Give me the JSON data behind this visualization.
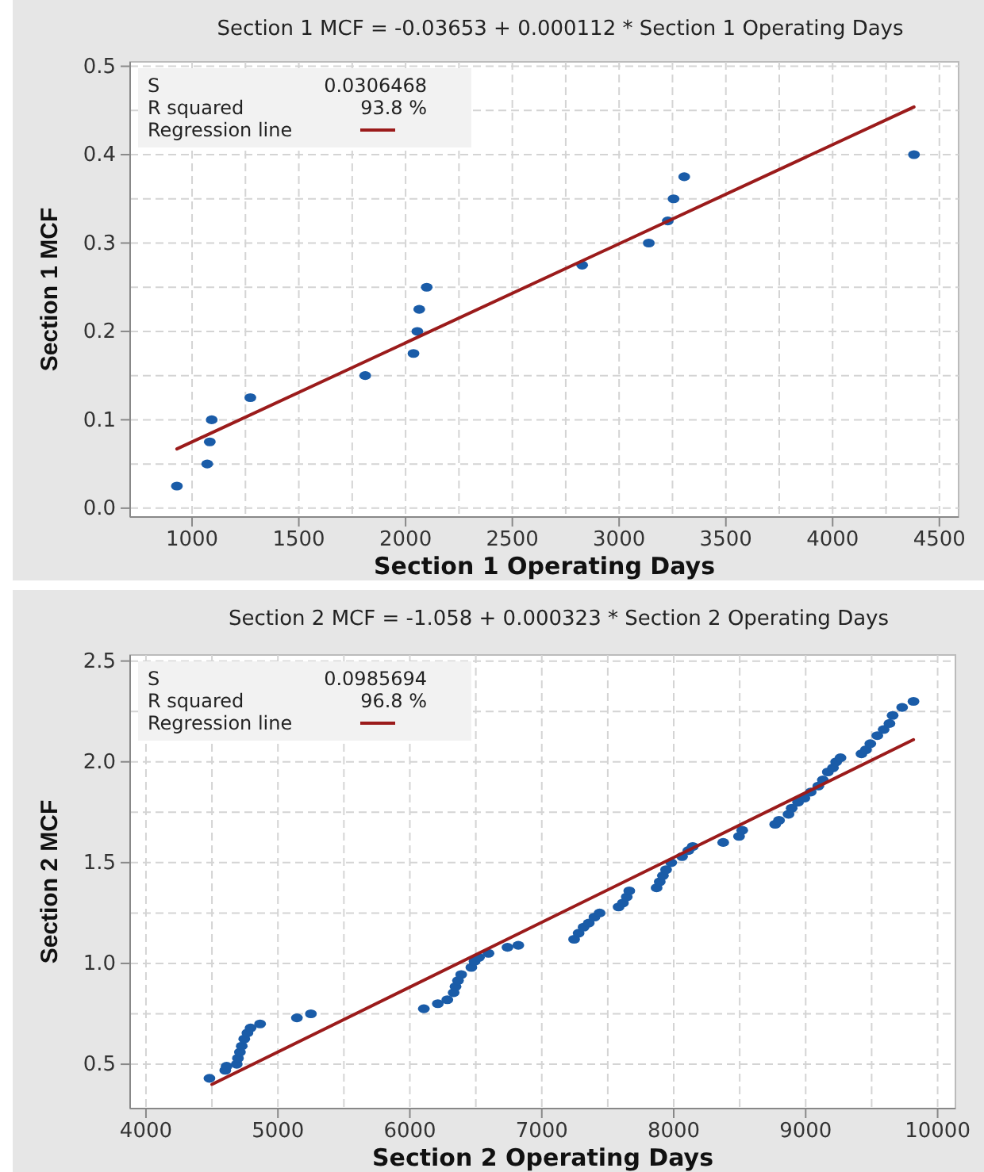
{
  "chart_data": [
    {
      "type": "scatter",
      "title": "Section 1 MCF = -0.03653 + 0.000112 * Section 1 Operating Days",
      "xlabel": "Section 1 Operating Days",
      "ylabel": "Section 1 MCF",
      "xlim": [
        710,
        4590
      ],
      "ylim": [
        -0.01,
        0.505
      ],
      "xticks": [
        1000,
        1500,
        2000,
        2500,
        3000,
        3500,
        4000,
        4500
      ],
      "yticks": [
        {
          "value": 0,
          "label": "0.0"
        },
        0.1,
        0.2,
        0.3,
        0.4,
        0.5
      ],
      "grid": true,
      "legend": "top left",
      "marker": "circle",
      "annotations": [
        "S",
        "0.0306468",
        "R squared",
        "93.8 %"
      ],
      "series": [
        {
          "color": "#1a5ca8",
          "x": [
            929,
            1071,
            1083,
            1092,
            1273,
            1811,
            2037,
            2055,
            2064,
            2099,
            2827,
            3139,
            3228,
            3255,
            3305,
            4381
          ],
          "values": [
            0.025,
            0.05,
            0.075,
            0.1,
            0.125,
            0.15,
            0.175,
            0.2,
            0.225,
            0.25,
            0.275,
            0.3,
            0.325,
            0.35,
            0.375,
            0.4
          ]
        },
        {
          "type": "line",
          "name": "Regression line",
          "color": "#9b1b1b",
          "line_style": "solid",
          "marker": "none",
          "x": [
            929,
            4381
          ],
          "values": [
            0.067,
            0.454
          ]
        }
      ]
    },
    {
      "type": "scatter",
      "title": "Section 2 MCF = -1.058 + 0.000323 * Section 2 Operating Days",
      "xlabel": "Section 2 Operating Days",
      "ylabel": "Section 2 MCF",
      "xlim": [
        3880,
        10135
      ],
      "ylim": [
        0.28,
        2.53
      ],
      "xticks": [
        4000,
        5000,
        6000,
        7000,
        8000,
        9000,
        10000
      ],
      "yticks": [
        0.5,
        {
          "value": 1,
          "label": "1.0"
        },
        1.5,
        {
          "value": 2,
          "label": "2.0"
        },
        2.5
      ],
      "grid": true,
      "legend": "top left",
      "marker": "circle",
      "annotations": [
        "S",
        "0.0985694",
        "R squared",
        "96.8 %"
      ],
      "series": [
        {
          "color": "#1a5ca8",
          "x": [
            4481,
            4601,
            4611,
            4688,
            4697,
            4712,
            4726,
            4745,
            4769,
            4793,
            4865,
            5144,
            5250,
            6106,
            6212,
            6284,
            6332,
            6346,
            6365,
            6389,
            6466,
            6490,
            6524,
            6596,
            6740,
            6822,
            7245,
            7279,
            7317,
            7356,
            7399,
            7438,
            7582,
            7615,
            7644,
            7663,
            7870,
            7894,
            7918,
            7942,
            7981,
            8063,
            8111,
            8144,
            8375,
            8495,
            8519,
            8769,
            8798,
            8870,
            8894,
            8942,
            8990,
            9038,
            9096,
            9130,
            9168,
            9207,
            9231,
            9264,
            9423,
            9457,
            9490,
            9543,
            9591,
            9635,
            9659,
            9731,
            9817
          ],
          "values": [
            0.43,
            0.47,
            0.49,
            0.5,
            0.53,
            0.56,
            0.59,
            0.625,
            0.655,
            0.68,
            0.7,
            0.73,
            0.75,
            0.775,
            0.8,
            0.82,
            0.855,
            0.885,
            0.915,
            0.945,
            0.98,
            1.01,
            1.03,
            1.05,
            1.08,
            1.09,
            1.12,
            1.15,
            1.18,
            1.2,
            1.23,
            1.25,
            1.28,
            1.3,
            1.33,
            1.36,
            1.375,
            1.405,
            1.435,
            1.465,
            1.5,
            1.53,
            1.56,
            1.58,
            1.6,
            1.63,
            1.66,
            1.69,
            1.71,
            1.74,
            1.77,
            1.8,
            1.82,
            1.85,
            1.88,
            1.91,
            1.95,
            1.97,
            2.0,
            2.02,
            2.04,
            2.06,
            2.09,
            2.13,
            2.16,
            2.19,
            2.23,
            2.27,
            2.3
          ]
        },
        {
          "type": "line",
          "name": "Regression line",
          "color": "#9b1b1b",
          "line_style": "solid",
          "marker": "none",
          "x": [
            4500,
            9817
          ],
          "values": [
            0.4,
            2.11
          ]
        }
      ]
    }
  ]
}
